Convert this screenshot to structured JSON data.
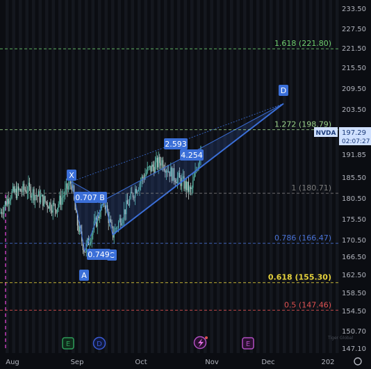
{
  "chart_data": {
    "type": "candlestick",
    "ticker": "NVDA",
    "price_axis": {
      "ticks": [
        "233.50",
        "227.50",
        "221.50",
        "215.50",
        "209.50",
        "203.50",
        "191.85",
        "185.50",
        "180.50",
        "175.50",
        "170.50",
        "166.50",
        "162.50",
        "158.50",
        "154.50",
        "150.70",
        "147.10"
      ]
    },
    "time_axis": {
      "labels": [
        "Aug",
        "Sep",
        "Oct",
        "Nov",
        "Dec",
        "202"
      ]
    },
    "last_price": {
      "value": "197.29",
      "countdown": "02:07:27"
    },
    "fib_levels": [
      {
        "label": "1.618 (221.80)",
        "price": 221.8,
        "color": "#6fcf6f",
        "style": "dashed"
      },
      {
        "label": "1.272 (198.79)",
        "price": 198.79,
        "color": "#9bd38a",
        "style": "dashed"
      },
      {
        "label": "1 (180.71)",
        "price": 180.71,
        "color": "#7d7d7d",
        "style": "dashed"
      },
      {
        "label": "0.786 (166.47)",
        "price": 166.47,
        "color": "#4a73d6",
        "style": "dashed"
      },
      {
        "label": "0.618 (155.30)",
        "price": 155.3,
        "color": "#e6d23c",
        "style": "dashed"
      },
      {
        "label": "0.5 (147.46)",
        "price": 147.46,
        "color": "#e05252",
        "style": "dashed"
      }
    ],
    "pattern_points": [
      {
        "name": "X",
        "price": 184.0
      },
      {
        "name": "A",
        "price": 164.3
      },
      {
        "name": "B",
        "price": 178.8
      },
      {
        "name": "C",
        "price": 168.9
      },
      {
        "name": "D",
        "price": 206.2
      }
    ],
    "ratio_labels": [
      "0.707",
      "0.749",
      "2.593",
      "4.254"
    ],
    "event_markers": [
      "E",
      "D",
      "E"
    ],
    "watermark": "Tiger Global"
  },
  "colors": {
    "background": "#0b0d12",
    "pattern": "#3b6fd8",
    "candle_up": "#5fc4b2",
    "candle_down": "#c9d6d2"
  }
}
